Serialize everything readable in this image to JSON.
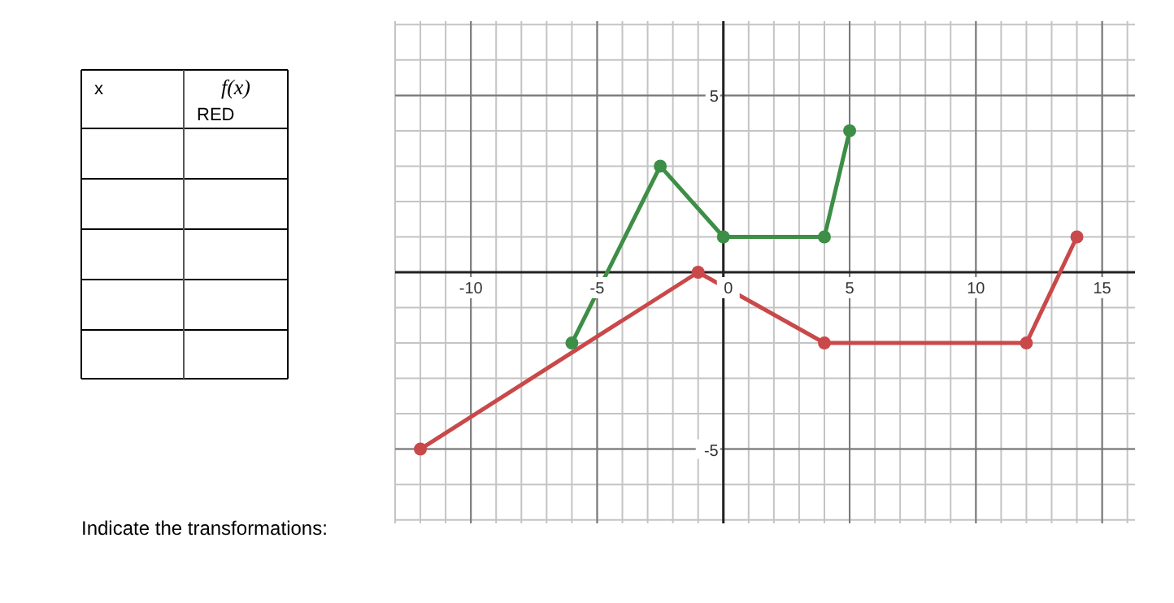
{
  "chart_data": {
    "type": "line",
    "xlim": [
      -13,
      16.3
    ],
    "ylim": [
      -7.1,
      7.1
    ],
    "xticks": [
      -10,
      -5,
      0,
      5,
      10,
      15
    ],
    "yticks": [
      -5,
      5
    ],
    "grid": true,
    "marker": "circle",
    "line_style": "solid",
    "annotations": [
      "x",
      "f(x)",
      "RED",
      "Indicate the transformations:"
    ],
    "series": [
      {
        "color": "#c9494a",
        "x": [
          -12,
          -1,
          4,
          12,
          14
        ],
        "values": [
          -5,
          0,
          -2,
          -2,
          1
        ]
      },
      {
        "color": "#3d8e46",
        "x": [
          -6,
          -2.5,
          0,
          4,
          5
        ],
        "values": [
          -2,
          3,
          1,
          1,
          4
        ]
      }
    ]
  }
}
